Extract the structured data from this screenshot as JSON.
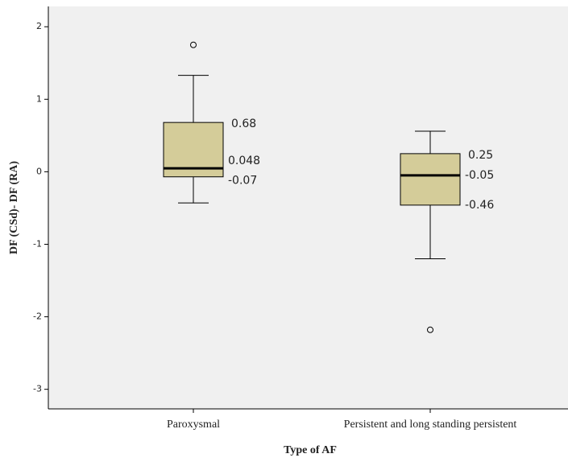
{
  "chart_data": {
    "type": "box",
    "x_label": "Type of AF",
    "y_label": "DF (CSd)- DF (RA)",
    "categories": [
      "Paroxysmal",
      "Persistent and long standing persistent"
    ],
    "boxes": [
      {
        "whisker_low": -0.43,
        "q1": -0.07,
        "median": 0.048,
        "q3": 0.68,
        "whisker_high": 1.33,
        "outliers": [
          1.75
        ]
      },
      {
        "whisker_low": -1.2,
        "q1": -0.46,
        "median": -0.05,
        "q3": 0.25,
        "whisker_high": 0.56,
        "outliers": [
          -2.18
        ]
      }
    ],
    "color": "#d4cc99",
    "ylim": [
      -3.27,
      2.28
    ],
    "yticks": [
      2,
      1,
      0,
      -1,
      -2,
      -3
    ]
  }
}
